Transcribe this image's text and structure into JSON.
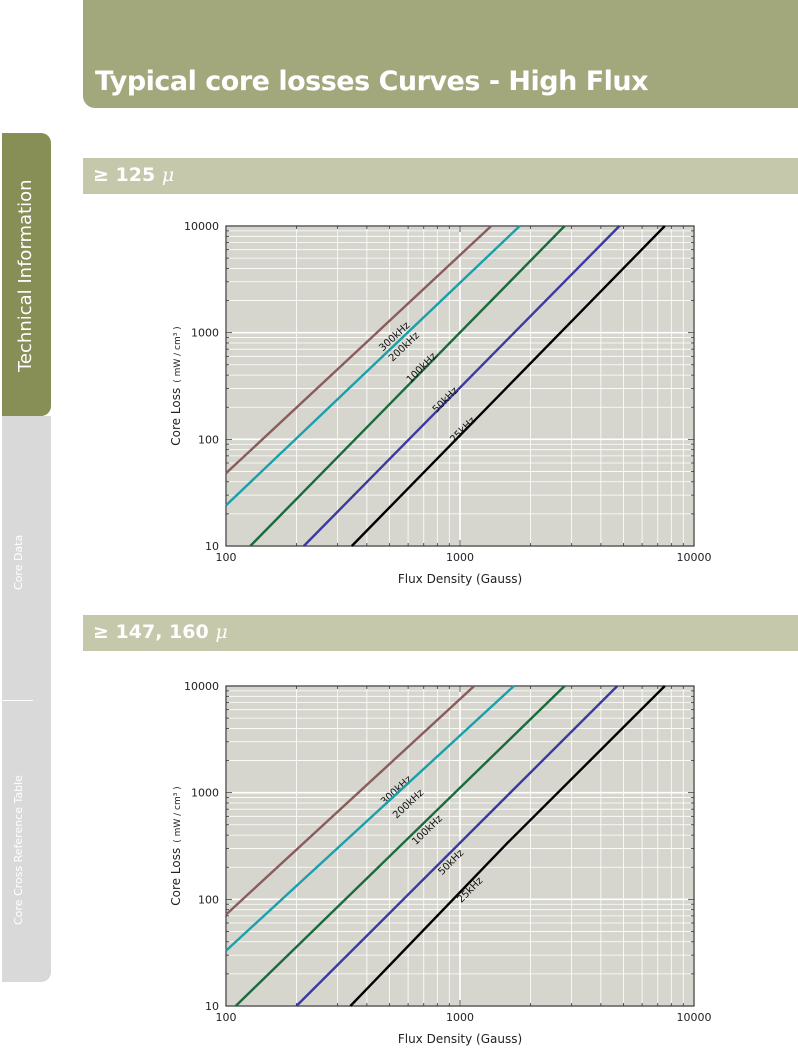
{
  "header": {
    "title": "Typical core losses Curves - High Flux"
  },
  "sidebar": {
    "tabs": [
      {
        "label": "Technical Information",
        "active": true
      },
      {
        "label": "Core Data",
        "active": false
      },
      {
        "label": "Core Cross Reference Table",
        "active": false
      }
    ]
  },
  "sections": [
    {
      "prefix": "≥",
      "label": "125",
      "unit": "μ"
    },
    {
      "prefix": "≥",
      "label": "147, 160",
      "unit": "μ"
    }
  ],
  "colors": {
    "header": "#a2a87c",
    "sidebar_active": "#878f57",
    "section_bar": "#c5c8ab",
    "plot_bg": "#d6d6cf"
  },
  "chart_data": [
    {
      "type": "line",
      "title": "",
      "xlabel": "Flux Density (Gauss)",
      "ylabel_main": "Core Loss",
      "ylabel_unit": "( mW / cm³ )",
      "x_scale": "log",
      "y_scale": "log",
      "xlim": [
        100,
        10000
      ],
      "ylim": [
        10,
        10000
      ],
      "x_ticks": [
        "100",
        "1000",
        "10000"
      ],
      "y_ticks": [
        "10",
        "100",
        "1000",
        "10000"
      ],
      "grid": true,
      "series": [
        {
          "name": "300kHz",
          "color": "#8a5c5c",
          "label_at": [
            550,
            820
          ],
          "points": [
            [
              100,
              48
            ],
            [
              1360,
              10000
            ]
          ]
        },
        {
          "name": "200kHz",
          "color": "#1aa0aa",
          "label_at": [
            605,
            660
          ],
          "points": [
            [
              100,
              24
            ],
            [
              1800,
              10000
            ]
          ]
        },
        {
          "name": "100kHz",
          "color": "#1a6b3c",
          "label_at": [
            720,
            420
          ],
          "points": [
            [
              127,
              10
            ],
            [
              2800,
              10000
            ]
          ]
        },
        {
          "name": "50kHz",
          "color": "#3a3aa0",
          "label_at": [
            910,
            210
          ],
          "points": [
            [
              215,
              10
            ],
            [
              4800,
              10000
            ]
          ]
        },
        {
          "name": "25kHz",
          "color": "#000000",
          "label_at": [
            1080,
            110
          ],
          "points": [
            [
              345,
              10
            ],
            [
              7500,
              10000
            ]
          ]
        }
      ]
    },
    {
      "type": "line",
      "title": "",
      "xlabel": "Flux Density (Gauss)",
      "ylabel_main": "Core Loss",
      "ylabel_unit": "( mW / cm³ )",
      "x_scale": "log",
      "y_scale": "log",
      "xlim": [
        100,
        10000
      ],
      "ylim": [
        10,
        10000
      ],
      "x_ticks": [
        "100",
        "1000",
        "10000"
      ],
      "y_ticks": [
        "10",
        "100",
        "1000",
        "10000"
      ],
      "grid": true,
      "series": [
        {
          "name": "300kHz",
          "color": "#8a5c5c",
          "label_at": [
            560,
            940
          ],
          "points": [
            [
              100,
              72
            ],
            [
              1150,
              10000
            ]
          ]
        },
        {
          "name": "200kHz",
          "color": "#1aa0aa",
          "label_at": [
            630,
            700
          ],
          "points": [
            [
              100,
              33
            ],
            [
              1700,
              10000
            ]
          ]
        },
        {
          "name": "100kHz",
          "color": "#1a6b3c",
          "label_at": [
            760,
            400
          ],
          "points": [
            [
              110,
              10
            ],
            [
              2800,
              10000
            ]
          ]
        },
        {
          "name": "50kHz",
          "color": "#3a3aa0",
          "label_at": [
            960,
            200
          ],
          "points": [
            [
              200,
              10
            ],
            [
              4700,
              10000
            ]
          ]
        },
        {
          "name": "25kHz",
          "color": "#000000",
          "label_at": [
            1160,
            110
          ],
          "points": [
            [
              340,
              10
            ],
            [
              1600,
              340
            ],
            [
              7500,
              10000
            ]
          ]
        }
      ]
    }
  ]
}
